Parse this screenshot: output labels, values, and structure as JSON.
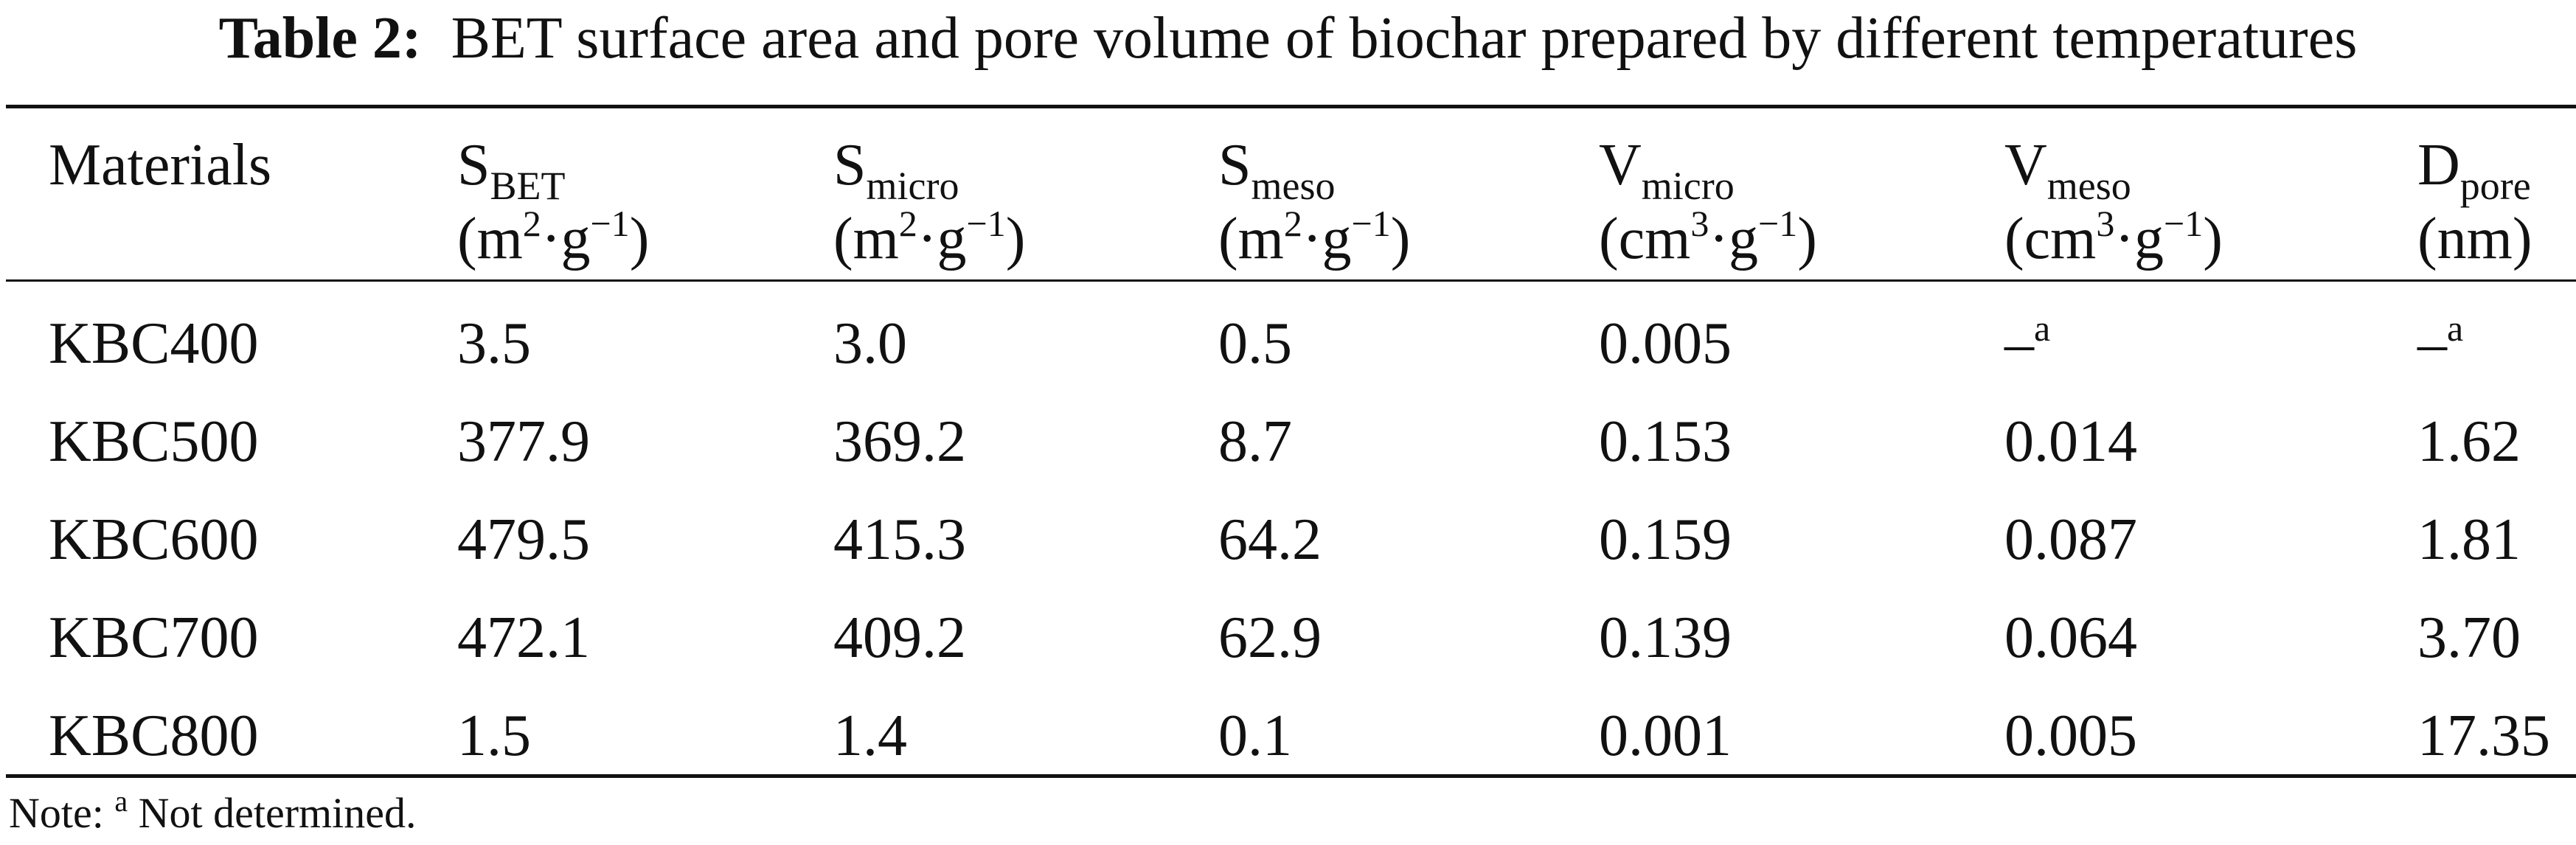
{
  "caption": {
    "label": "Table 2:",
    "text": "BET surface area and pore volume of biochar prepared by different temperatures"
  },
  "headers": [
    {
      "main": "Materials"
    },
    {
      "main": "S",
      "sub": "BET",
      "unit_open": "(m",
      "unit_sup1": "2",
      "unit_mid": "·g",
      "unit_sup2": "−1",
      "unit_close": ")"
    },
    {
      "main": "S",
      "sub": "micro",
      "unit_open": "(m",
      "unit_sup1": "2",
      "unit_mid": "·g",
      "unit_sup2": "−1",
      "unit_close": ")"
    },
    {
      "main": "S",
      "sub": "meso",
      "unit_open": "(m",
      "unit_sup1": "2",
      "unit_mid": "·g",
      "unit_sup2": "−1",
      "unit_close": ")"
    },
    {
      "main": "V",
      "sub": "micro",
      "unit_open": "(cm",
      "unit_sup1": "3",
      "unit_mid": "·g",
      "unit_sup2": "−1",
      "unit_close": ")"
    },
    {
      "main": "V",
      "sub": "meso",
      "unit_open": "(cm",
      "unit_sup1": "3",
      "unit_mid": "·g",
      "unit_sup2": "−1",
      "unit_close": ")"
    },
    {
      "main": "D",
      "sub": "pore",
      "unit_open": "(nm)"
    }
  ],
  "rows": [
    {
      "material": "KBC400",
      "s_bet": "3.5",
      "s_micro": "3.0",
      "s_meso": "0.5",
      "v_micro": "0.005",
      "v_meso": "–",
      "v_meso_sup": "a",
      "d_pore": "–",
      "d_pore_sup": "a"
    },
    {
      "material": "KBC500",
      "s_bet": "377.9",
      "s_micro": "369.2",
      "s_meso": "8.7",
      "v_micro": "0.153",
      "v_meso": "0.014",
      "d_pore": "1.62"
    },
    {
      "material": "KBC600",
      "s_bet": "479.5",
      "s_micro": "415.3",
      "s_meso": "64.2",
      "v_micro": "0.159",
      "v_meso": "0.087",
      "d_pore": "1.81"
    },
    {
      "material": "KBC700",
      "s_bet": "472.1",
      "s_micro": "409.2",
      "s_meso": "62.9",
      "v_micro": "0.139",
      "v_meso": "0.064",
      "d_pore": "3.70"
    },
    {
      "material": "KBC800",
      "s_bet": "1.5",
      "s_micro": "1.4",
      "s_meso": "0.1",
      "v_micro": "0.001",
      "v_meso": "0.005",
      "d_pore": "17.35"
    }
  ],
  "note": {
    "prefix": "Note:",
    "sup": "a",
    "text": "Not determined."
  }
}
